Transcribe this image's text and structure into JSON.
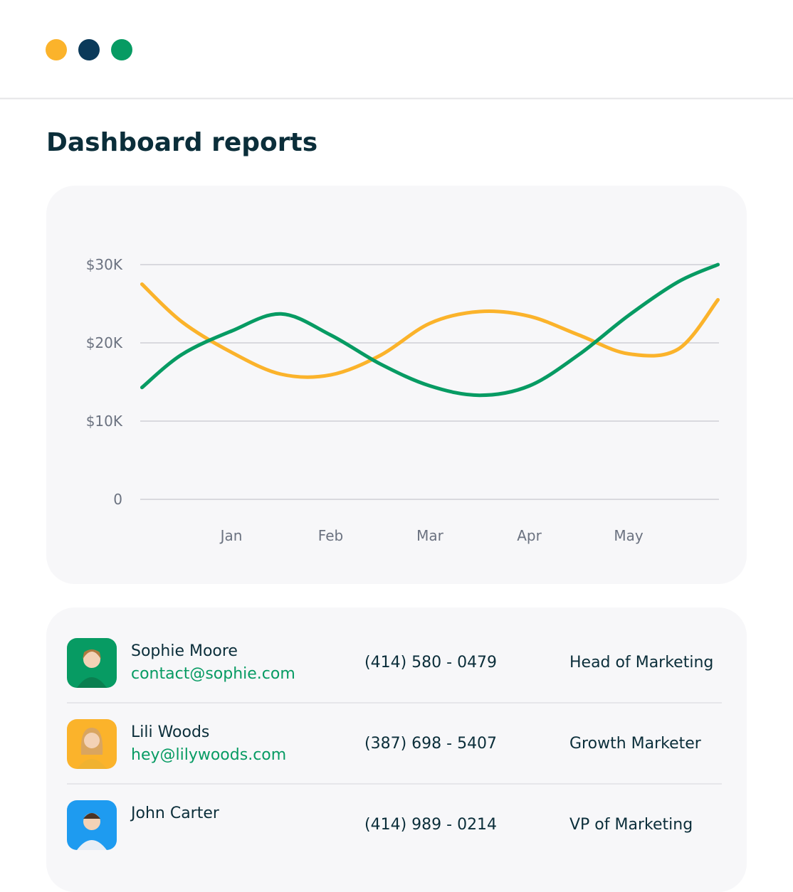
{
  "header": {
    "title": "Dashboard reports"
  },
  "chart_data": {
    "type": "line",
    "x": [
      0.1,
      0.5,
      1,
      1.5,
      2,
      2.5,
      3,
      3.5,
      4,
      4.5,
      5,
      5.5,
      5.9
    ],
    "xlim": [
      0,
      6
    ],
    "xticks": [
      {
        "value": 1,
        "label": "Jan"
      },
      {
        "value": 2,
        "label": "Feb"
      },
      {
        "value": 3,
        "label": "Mar"
      },
      {
        "value": 4,
        "label": "Apr"
      },
      {
        "value": 5,
        "label": "May"
      }
    ],
    "ylim": [
      0,
      30000
    ],
    "yticks": [
      0,
      {
        "value": 10000,
        "label": "$10K"
      },
      {
        "value": 20000,
        "label": "$20K"
      },
      {
        "value": 30000,
        "label": "$30K"
      }
    ],
    "grid": true,
    "series": [
      {
        "color": "#fbb32b",
        "values": [
          27500,
          22700,
          18800,
          16000,
          15900,
          18400,
          22500,
          24000,
          23400,
          21000,
          18600,
          19200,
          25500
        ]
      },
      {
        "color": "#079b63",
        "values": [
          14300,
          18500,
          21500,
          23700,
          21000,
          17300,
          14500,
          13300,
          14500,
          18500,
          23500,
          27800,
          30000
        ]
      }
    ]
  },
  "contacts": {
    "rows": [
      {
        "name": "Sophie Moore",
        "email": "contact@sophie.com",
        "phone": "(414) 580 - 0479",
        "role": "Head of Marketing"
      },
      {
        "name": "Lili Woods",
        "email": "hey@lilywoods.com",
        "phone": "(387) 698 - 5407",
        "role": "Growth Marketer"
      },
      {
        "name": "John Carter",
        "phone": "(414) 989 - 0214",
        "role": "VP of Marketing"
      }
    ]
  }
}
